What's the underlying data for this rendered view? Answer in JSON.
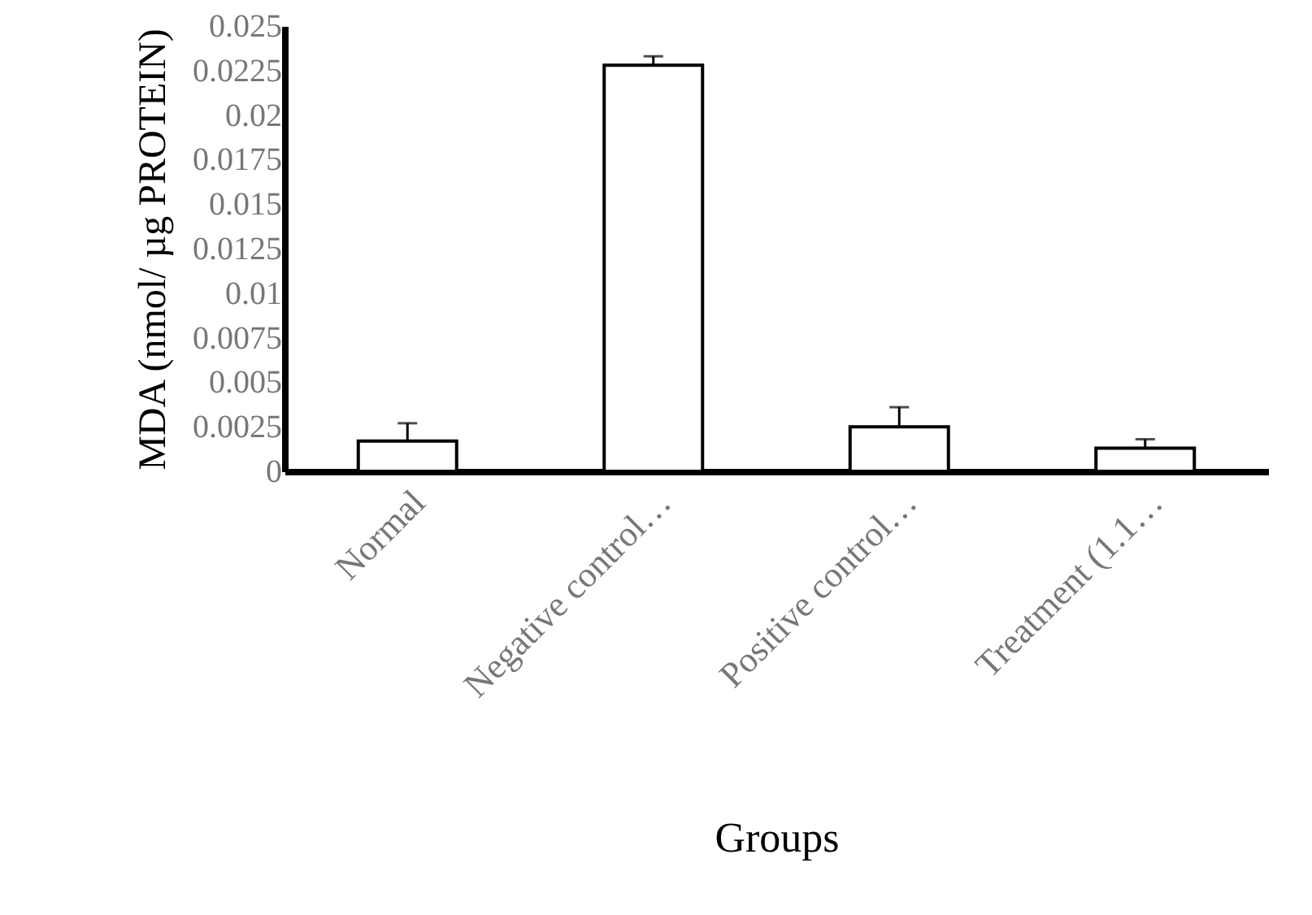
{
  "chart_data": {
    "type": "bar",
    "xlabel": "Groups",
    "ylabel": "MDA (nmol/ µg PROTEIN)",
    "categories": [
      "Normal",
      "Negative control…",
      "Positive control…",
      "Treatment (1.1…"
    ],
    "values": [
      0.0017,
      0.0228,
      0.0025,
      0.0013
    ],
    "errors": [
      0.001,
      0.0005,
      0.0011,
      0.0005
    ],
    "color": "#ffffff",
    "ylim": [
      0,
      0.025
    ],
    "yticks": [
      0,
      0.0025,
      0.005,
      0.0075,
      0.01,
      0.0125,
      0.015,
      0.0175,
      0.02,
      0.0225,
      0.025
    ],
    "grid": false
  }
}
